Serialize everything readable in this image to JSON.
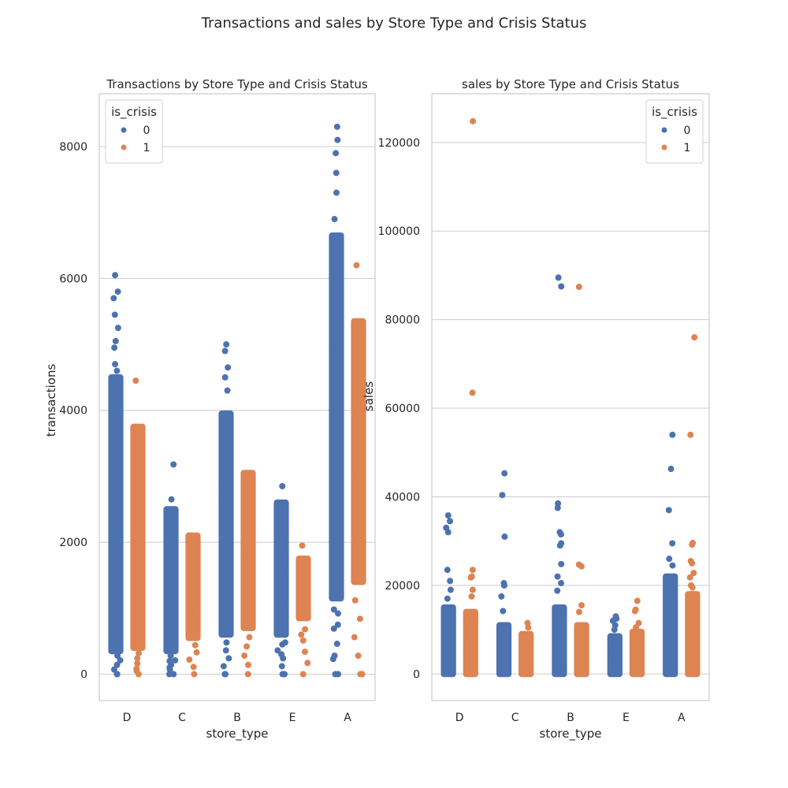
{
  "figure": {
    "title": "Transactions and sales by Store Type and Crisis Status"
  },
  "colors": {
    "is_crisis_0": "#4c72b0",
    "is_crisis_1": "#dd8452",
    "grid": "#cccccc",
    "text": "#262626"
  },
  "chart_data": [
    {
      "type": "scatter",
      "subtype": "strip",
      "title": "Transactions by Store Type and Crisis Status",
      "xlabel": "store_type",
      "ylabel": "transactions",
      "categories": [
        "D",
        "C",
        "B",
        "E",
        "A"
      ],
      "ylim": [
        -400,
        8800
      ],
      "yticks": [
        0,
        2000,
        4000,
        6000,
        8000
      ],
      "ytick_labels": [
        "0",
        "2000",
        "4000",
        "6000",
        "8000"
      ],
      "grid": true,
      "legend": {
        "title": "is_crisis",
        "position": "top-left",
        "entries": [
          "0",
          "1"
        ]
      },
      "series": [
        {
          "name": "0",
          "range_min": [
            0,
            0,
            0,
            0,
            0
          ],
          "range_low": [
            350,
            350,
            600,
            600,
            1150
          ],
          "range_high": [
            4500,
            2500,
            3950,
            2600,
            6650
          ],
          "points": [
            [
              0,
              0
            ],
            [
              0,
              4600
            ],
            [
              0,
              4700
            ],
            [
              0,
              4950
            ],
            [
              0,
              5050
            ],
            [
              0,
              5250
            ],
            [
              0,
              5450
            ],
            [
              0,
              5700
            ],
            [
              0,
              5800
            ],
            [
              0,
              6050
            ],
            [
              1,
              0
            ],
            [
              1,
              100
            ],
            [
              1,
              200
            ],
            [
              1,
              2650
            ],
            [
              1,
              3180
            ],
            [
              2,
              0
            ],
            [
              2,
              4300
            ],
            [
              2,
              4500
            ],
            [
              2,
              4650
            ],
            [
              2,
              4900
            ],
            [
              2,
              5000
            ],
            [
              3,
              0
            ],
            [
              3,
              300
            ],
            [
              3,
              450
            ],
            [
              3,
              2850
            ],
            [
              4,
              0
            ],
            [
              4,
              280
            ],
            [
              4,
              750
            ],
            [
              4,
              980
            ],
            [
              4,
              6900
            ],
            [
              4,
              7300
            ],
            [
              4,
              7600
            ],
            [
              4,
              7900
            ],
            [
              4,
              8100
            ],
            [
              4,
              8300
            ]
          ]
        },
        {
          "name": "1",
          "range_min": [
            0,
            0,
            0,
            0,
            0
          ],
          "range_low": [
            400,
            550,
            700,
            850,
            1400
          ],
          "range_high": [
            3750,
            2100,
            3050,
            1750,
            5350
          ],
          "points": [
            [
              0,
              50
            ],
            [
              0,
              4450
            ],
            [
              2,
              3000
            ],
            [
              3,
              600
            ],
            [
              3,
              1950
            ],
            [
              4,
              0
            ],
            [
              4,
              6200
            ]
          ]
        }
      ]
    },
    {
      "type": "scatter",
      "subtype": "strip",
      "title": "sales by Store Type and Crisis Status",
      "xlabel": "store_type",
      "ylabel": "sales",
      "categories": [
        "D",
        "C",
        "B",
        "E",
        "A"
      ],
      "ylim": [
        -6000,
        131000
      ],
      "yticks": [
        0,
        20000,
        40000,
        60000,
        80000,
        100000,
        120000
      ],
      "ytick_labels": [
        "0",
        "20000",
        "40000",
        "60000",
        "80000",
        "100000",
        "120000"
      ],
      "grid": true,
      "legend": {
        "title": "is_crisis",
        "position": "top-right",
        "entries": [
          "0",
          "1"
        ]
      },
      "series": [
        {
          "name": "0",
          "range_min": [
            0,
            0,
            0,
            0,
            0
          ],
          "range_low": [
            0,
            0,
            0,
            0,
            0
          ],
          "range_high": [
            15000,
            11000,
            15000,
            8500,
            22000
          ],
          "points": [
            [
              0,
              33000
            ],
            [
              0,
              34500
            ],
            [
              0,
              35800
            ],
            [
              0,
              32000
            ],
            [
              0,
              23500
            ],
            [
              0,
              21000
            ],
            [
              0,
              19000
            ],
            [
              0,
              17000
            ],
            [
              1,
              45300
            ],
            [
              1,
              40400
            ],
            [
              1,
              31000
            ],
            [
              1,
              20500
            ],
            [
              1,
              20000
            ],
            [
              1,
              17500
            ],
            [
              1,
              14200
            ],
            [
              2,
              89500
            ],
            [
              2,
              87500
            ],
            [
              2,
              38500
            ],
            [
              2,
              37500
            ],
            [
              2,
              32000
            ],
            [
              2,
              31500
            ],
            [
              2,
              29500
            ],
            [
              2,
              29000
            ],
            [
              2,
              24800
            ],
            [
              2,
              22000
            ],
            [
              2,
              20500
            ],
            [
              2,
              18800
            ],
            [
              3,
              13000
            ],
            [
              3,
              12500
            ],
            [
              3,
              12000
            ],
            [
              3,
              11000
            ],
            [
              3,
              10000
            ],
            [
              4,
              54000
            ],
            [
              4,
              46300
            ],
            [
              4,
              37000
            ],
            [
              4,
              29500
            ],
            [
              4,
              26000
            ],
            [
              4,
              24500
            ]
          ]
        },
        {
          "name": "1",
          "range_min": [
            0,
            0,
            0,
            0,
            0
          ],
          "range_low": [
            0,
            0,
            0,
            0,
            0
          ],
          "range_high": [
            14000,
            9000,
            11000,
            9500,
            18000
          ],
          "points": [
            [
              0,
              124800
            ],
            [
              0,
              63500
            ],
            [
              0,
              23500
            ],
            [
              0,
              22000
            ],
            [
              0,
              21800
            ],
            [
              0,
              19000
            ],
            [
              0,
              17500
            ],
            [
              1,
              11500
            ],
            [
              1,
              10500
            ],
            [
              2,
              87400
            ],
            [
              2,
              24700
            ],
            [
              2,
              24300
            ],
            [
              2,
              15500
            ],
            [
              2,
              14000
            ],
            [
              3,
              16500
            ],
            [
              3,
              14500
            ],
            [
              3,
              14200
            ],
            [
              3,
              11500
            ],
            [
              3,
              10500
            ],
            [
              4,
              76000
            ],
            [
              4,
              54000
            ],
            [
              4,
              29600
            ],
            [
              4,
              29200
            ],
            [
              4,
              25500
            ],
            [
              4,
              25000
            ],
            [
              4,
              22800
            ],
            [
              4,
              21800
            ],
            [
              4,
              20000
            ],
            [
              4,
              19500
            ]
          ]
        }
      ]
    }
  ]
}
